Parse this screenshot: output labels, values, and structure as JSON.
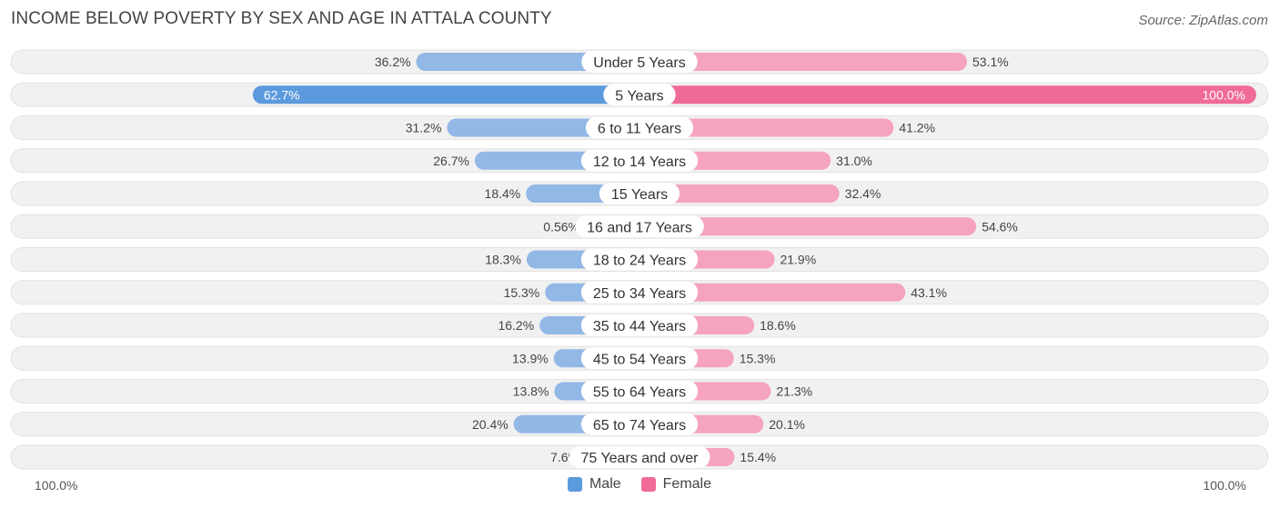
{
  "title": "INCOME BELOW POVERTY BY SEX AND AGE IN ATTALA COUNTY",
  "source": "Source: ZipAtlas.com",
  "colors": {
    "male": "#92b8e6",
    "male_strong": "#5c9ade",
    "male_light": "#b6d0ef",
    "female": "#f5a3bf",
    "female_strong": "#f06b96",
    "track": "#f1f1f1"
  },
  "axis": {
    "left_label": "100.0%",
    "right_label": "100.0%"
  },
  "legend": {
    "male_label": "Male",
    "female_label": "Female"
  },
  "chart_data": {
    "type": "bar",
    "orientation": "horizontal-diverging",
    "title": "INCOME BELOW POVERTY BY SEX AND AGE IN ATTALA COUNTY",
    "xlim": [
      -100,
      100
    ],
    "categories": [
      "Under 5 Years",
      "5 Years",
      "6 to 11 Years",
      "12 to 14 Years",
      "15 Years",
      "16 and 17 Years",
      "18 to 24 Years",
      "25 to 34 Years",
      "35 to 44 Years",
      "45 to 54 Years",
      "55 to 64 Years",
      "65 to 74 Years",
      "75 Years and over"
    ],
    "series": [
      {
        "name": "Male",
        "values": [
          36.2,
          62.7,
          31.2,
          26.7,
          18.4,
          0.56,
          18.3,
          15.3,
          16.2,
          13.9,
          13.8,
          20.4,
          7.6
        ],
        "labels": [
          "36.2%",
          "62.7%",
          "31.2%",
          "26.7%",
          "18.4%",
          "0.56%",
          "18.3%",
          "15.3%",
          "16.2%",
          "13.9%",
          "13.8%",
          "20.4%",
          "7.6%"
        ]
      },
      {
        "name": "Female",
        "values": [
          53.1,
          100.0,
          41.2,
          31.0,
          32.4,
          54.6,
          21.9,
          43.1,
          18.6,
          15.3,
          21.3,
          20.1,
          15.4
        ],
        "labels": [
          "53.1%",
          "100.0%",
          "41.2%",
          "31.0%",
          "32.4%",
          "54.6%",
          "21.9%",
          "43.1%",
          "18.6%",
          "15.3%",
          "21.3%",
          "20.1%",
          "15.4%"
        ]
      }
    ],
    "legend": [
      "Male",
      "Female"
    ]
  }
}
